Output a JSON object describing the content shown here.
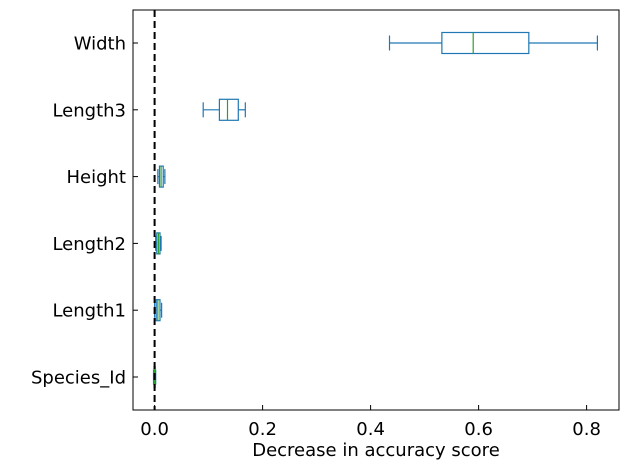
{
  "chart_data": {
    "type": "boxplot",
    "orientation": "horizontal",
    "title": "",
    "xlabel": "Decrease in accuracy score",
    "ylabel": "",
    "xlim": [
      -0.04,
      0.86
    ],
    "xticks": [
      {
        "value": 0.0,
        "label": "0.0"
      },
      {
        "value": 0.2,
        "label": "0.2"
      },
      {
        "value": 0.4,
        "label": "0.4"
      },
      {
        "value": 0.6,
        "label": "0.6"
      },
      {
        "value": 0.8,
        "label": "0.8"
      }
    ],
    "reference_line": {
      "value": 0.0,
      "style": "dashed",
      "color": "#000000"
    },
    "grid": false,
    "box_color": "#1f77b4",
    "median_color": "#2ca02c",
    "categories": [
      "Species_Id",
      "Length1",
      "Length2",
      "Height",
      "Length3",
      "Width"
    ],
    "boxes": [
      {
        "label": "Species_Id",
        "whislo": -0.002,
        "q1": -0.001,
        "med": 0.0,
        "q3": 0.001,
        "whishi": 0.002
      },
      {
        "label": "Length1",
        "whislo": 0.0,
        "q1": 0.003,
        "med": 0.006,
        "q3": 0.01,
        "whishi": 0.013
      },
      {
        "label": "Length2",
        "whislo": 0.002,
        "q1": 0.004,
        "med": 0.007,
        "q3": 0.01,
        "whishi": 0.012
      },
      {
        "label": "Height",
        "whislo": 0.006,
        "q1": 0.009,
        "med": 0.012,
        "q3": 0.016,
        "whishi": 0.019
      },
      {
        "label": "Length3",
        "whislo": 0.09,
        "q1": 0.12,
        "med": 0.135,
        "q3": 0.155,
        "whishi": 0.168
      },
      {
        "label": "Width",
        "whislo": 0.435,
        "q1": 0.532,
        "med": 0.59,
        "q3": 0.693,
        "whishi": 0.82
      }
    ]
  }
}
